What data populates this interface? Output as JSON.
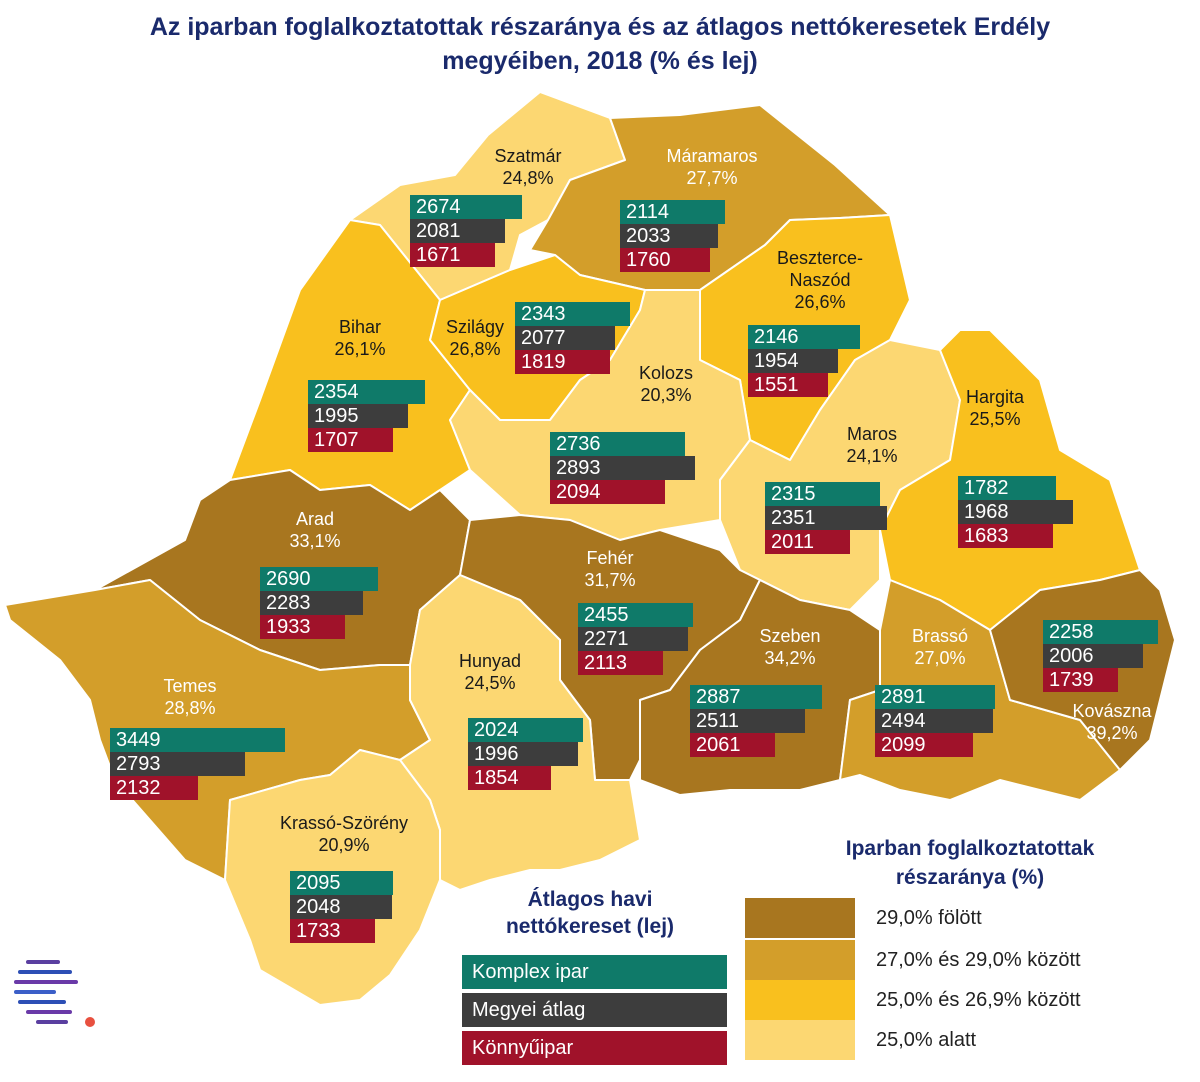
{
  "title_line1": "Az iparban foglalkoztatottak részaránya és az átlagos nettókeresetek Erdély",
  "title_line2": "megyéiben, 2018 (% és lej)",
  "colors": {
    "above_29": "#a8761f",
    "27_29": "#d39e2a",
    "25_269": "#f9c01e",
    "below_25": "#fcd772",
    "komplex": "#0f7a69",
    "atlag": "#3d3d3d",
    "konnyu": "#a0122a"
  },
  "counties": [
    {
      "id": "szatmar",
      "name": "Szatmár",
      "share": "24,8%",
      "komplex": 2674,
      "atlag": 2081,
      "konnyu": 1671
    },
    {
      "id": "maramaros",
      "name": "Máramaros",
      "share": "27,7%",
      "komplex": 2114,
      "atlag": 2033,
      "konnyu": 1760
    },
    {
      "id": "beszterce",
      "name": "Beszterce-\nNaszód",
      "share": "26,6%",
      "komplex": 2146,
      "atlag": 1954,
      "konnyu": 1551
    },
    {
      "id": "bihar",
      "name": "Bihar",
      "share": "26,1%",
      "komplex": 2354,
      "atlag": 1995,
      "konnyu": 1707
    },
    {
      "id": "szilagy",
      "name": "Szilágy",
      "share": "26,8%",
      "komplex": 2343,
      "atlag": 2077,
      "konnyu": 1819
    },
    {
      "id": "kolozs",
      "name": "Kolozs",
      "share": "20,3%",
      "komplex": 2736,
      "atlag": 2893,
      "konnyu": 2094
    },
    {
      "id": "maros",
      "name": "Maros",
      "share": "24,1%",
      "komplex": 2315,
      "atlag": 2351,
      "konnyu": 2011
    },
    {
      "id": "hargita",
      "name": "Hargita",
      "share": "25,5%",
      "komplex": 1782,
      "atlag": 1968,
      "konnyu": 1683
    },
    {
      "id": "arad",
      "name": "Arad",
      "share": "33,1%",
      "komplex": 2690,
      "atlag": 2283,
      "konnyu": 1933
    },
    {
      "id": "feher",
      "name": "Fehér",
      "share": "31,7%",
      "komplex": 2455,
      "atlag": 2271,
      "konnyu": 2113
    },
    {
      "id": "szeben",
      "name": "Szeben",
      "share": "34,2%",
      "komplex": 2887,
      "atlag": 2511,
      "konnyu": 2061
    },
    {
      "id": "brasso",
      "name": "Brassó",
      "share": "27,0%",
      "komplex": 2891,
      "atlag": 2494,
      "konnyu": 2099
    },
    {
      "id": "kovaszna",
      "name": "Kovászna",
      "share": "39,2%",
      "komplex": 2258,
      "atlag": 2006,
      "konnyu": 1739
    },
    {
      "id": "temes",
      "name": "Temes",
      "share": "28,8%",
      "komplex": 3449,
      "atlag": 2793,
      "konnyu": 2132
    },
    {
      "id": "hunyad",
      "name": "Hunyad",
      "share": "24,5%",
      "komplex": 2024,
      "atlag": 1996,
      "konnyu": 1854
    },
    {
      "id": "krasso",
      "name": "Krassó-Szörény",
      "share": "20,9%",
      "komplex": 2095,
      "atlag": 2048,
      "konnyu": 1733
    }
  ],
  "legend_bars": {
    "title_line1": "Átlagos havi",
    "title_line2": "nettókereset (lej)",
    "komplex": "Komplex ipar",
    "atlag": "Megyei átlag",
    "konnyu": "Könnyűipar"
  },
  "legend_share": {
    "title_line1": "Iparban foglalkoztatottak",
    "title_line2": "részaránya (%)",
    "items": [
      "29,0% fölött",
      "27,0% és 29,0% között",
      "25,0% és 26,9% között",
      "25,0% alatt"
    ]
  }
}
